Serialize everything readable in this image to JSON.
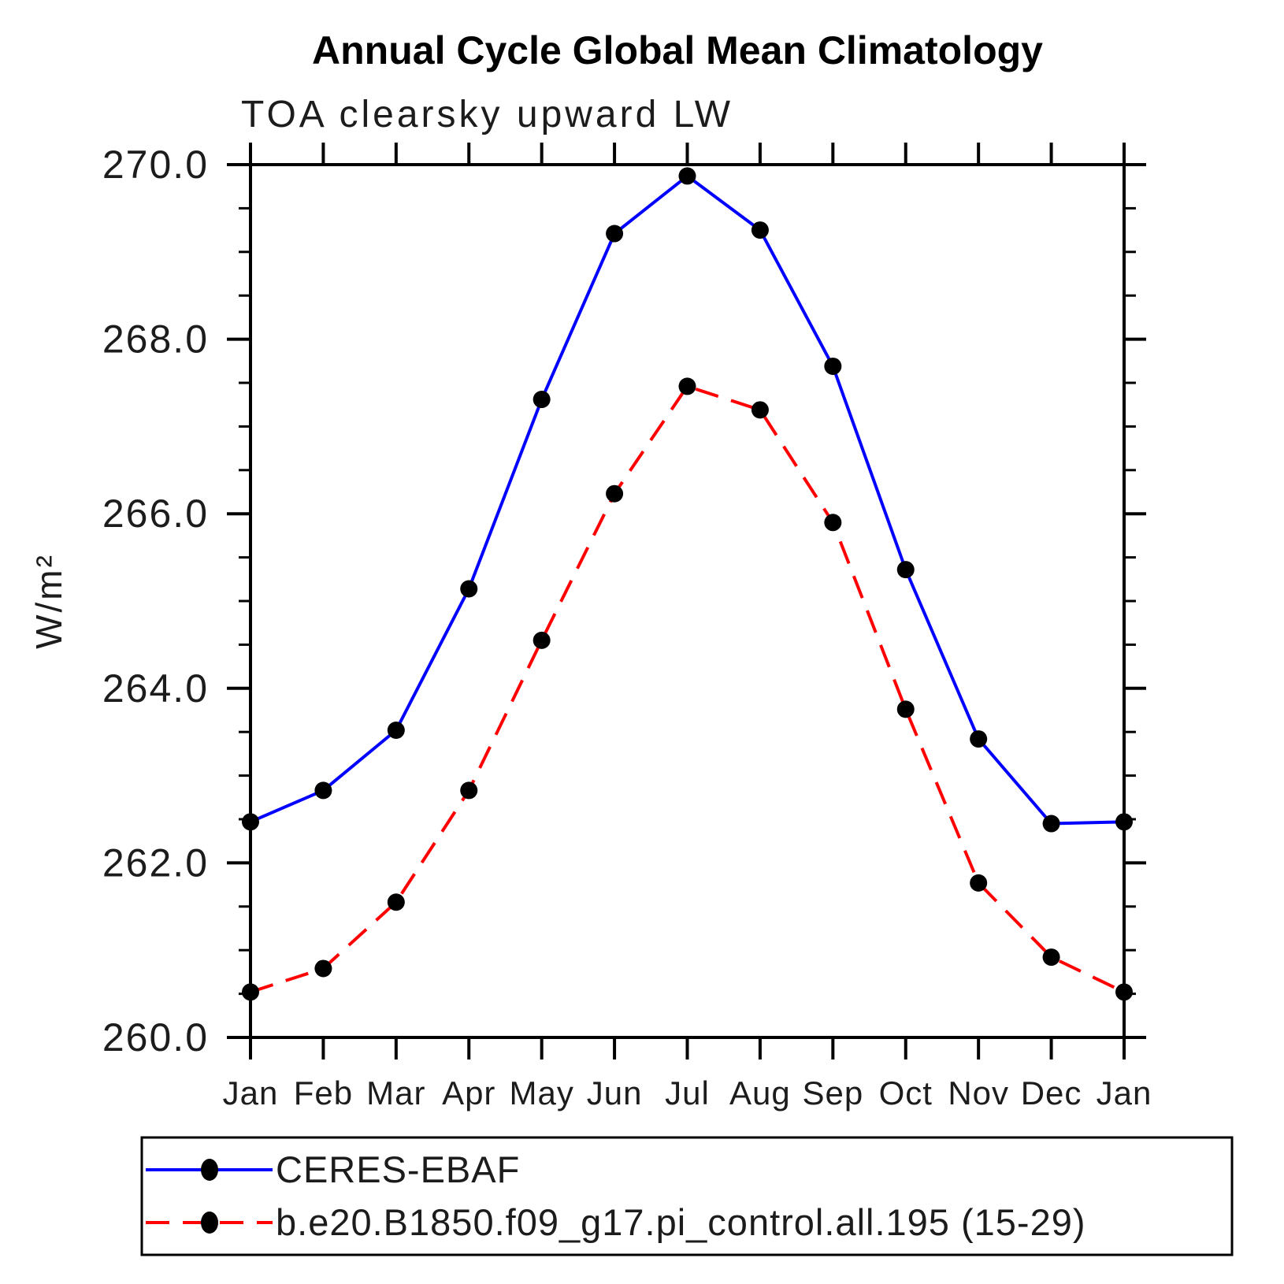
{
  "title": "Annual Cycle Global Mean Climatology",
  "subtitle": "TOA clearsky upward LW",
  "chart_data": {
    "type": "line",
    "title": "Annual Cycle Global Mean Climatology",
    "subtitle": "TOA clearsky upward LW",
    "xlabel": "",
    "ylabel": "W/m²",
    "x_tick_labels": [
      "Jan",
      "Feb",
      "Mar",
      "Apr",
      "May",
      "Jun",
      "Jul",
      "Aug",
      "Sep",
      "Oct",
      "Nov",
      "Dec",
      "Jan"
    ],
    "ylim": [
      260.0,
      270.0
    ],
    "y_major_ticks": [
      260.0,
      262.0,
      264.0,
      266.0,
      268.0,
      270.0
    ],
    "y_tick_labels": [
      "260.0",
      "262.0",
      "264.0",
      "266.0",
      "268.0",
      "270.0"
    ],
    "y_minor_step": 0.5,
    "grid": false,
    "legend_position": "bottom-left-box",
    "marker_color": "#000000",
    "axis_color": "#000000",
    "series": [
      {
        "name": "CERES-EBAF",
        "color": "#0000ff",
        "line_style": "solid",
        "marker": "filled-circle",
        "values": [
          262.47,
          262.83,
          263.52,
          265.14,
          267.31,
          269.21,
          269.87,
          269.25,
          267.69,
          265.36,
          263.42,
          262.45,
          262.47
        ]
      },
      {
        "name": "b.e20.B1850.f09_g17.pi_control.all.195 (15-29)",
        "color": "#ff0000",
        "line_style": "dashed",
        "marker": "filled-circle",
        "values": [
          260.52,
          260.79,
          261.55,
          262.83,
          264.55,
          266.23,
          267.46,
          267.19,
          265.9,
          263.76,
          261.77,
          260.92,
          260.52
        ]
      }
    ]
  }
}
